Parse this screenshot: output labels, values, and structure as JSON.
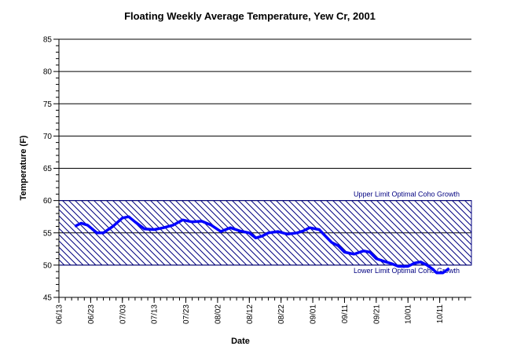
{
  "chart_data": {
    "type": "line",
    "title": "Floating Weekly Average Temperature, Yew Cr, 2001",
    "xlabel": "Date",
    "ylabel": "Temperature (F)",
    "xlim": [
      0,
      130
    ],
    "xticks": [
      {
        "value": 0,
        "label": "06/13"
      },
      {
        "value": 10,
        "label": "06/23"
      },
      {
        "value": 20,
        "label": "07/03"
      },
      {
        "value": 30,
        "label": "07/13"
      },
      {
        "value": 40,
        "label": "07/23"
      },
      {
        "value": 50,
        "label": "08/02"
      },
      {
        "value": 60,
        "label": "08/12"
      },
      {
        "value": 70,
        "label": "08/22"
      },
      {
        "value": 80,
        "label": "09/01"
      },
      {
        "value": 90,
        "label": "09/11"
      },
      {
        "value": 100,
        "label": "09/21"
      },
      {
        "value": 110,
        "label": "10/01"
      },
      {
        "value": 120,
        "label": "10/11"
      }
    ],
    "ylim": [
      45,
      85
    ],
    "yticks": [
      45,
      50,
      55,
      60,
      65,
      70,
      75,
      80,
      85
    ],
    "grid": true,
    "band": {
      "low": 50,
      "high": 60,
      "color": "#000080",
      "upper_label": "Upper Limit Optimal Coho Growth",
      "lower_label": "Lower Limit Optimal Coho Growth"
    },
    "series": [
      {
        "name": "Floating Weekly Average Temperature",
        "color": "#0000ff",
        "x": [
          5,
          7,
          9,
          12,
          14,
          17,
          20,
          22,
          24,
          27,
          30,
          33,
          36,
          39,
          42,
          45,
          48,
          51,
          54,
          57,
          60,
          62,
          64,
          66,
          69,
          72,
          75,
          77,
          79,
          82,
          84,
          86,
          88,
          90,
          93,
          96,
          98,
          100,
          103,
          105,
          107,
          110,
          112,
          114,
          116,
          118,
          119,
          121,
          123
        ],
        "values": [
          56,
          56.5,
          56.2,
          55,
          55,
          56,
          57.3,
          57.5,
          56.7,
          55.6,
          55.5,
          55.8,
          56.2,
          57,
          56.7,
          56.8,
          56.2,
          55.2,
          55.8,
          55.3,
          55,
          54.2,
          54.5,
          55,
          55.2,
          54.8,
          55,
          55.3,
          55.8,
          55.5,
          54.5,
          53.5,
          53,
          52,
          51.7,
          52.2,
          52,
          51,
          50.5,
          50.2,
          49.8,
          49.8,
          50.3,
          50.5,
          50,
          49.3,
          48.8,
          48.8,
          49.5
        ]
      }
    ]
  }
}
